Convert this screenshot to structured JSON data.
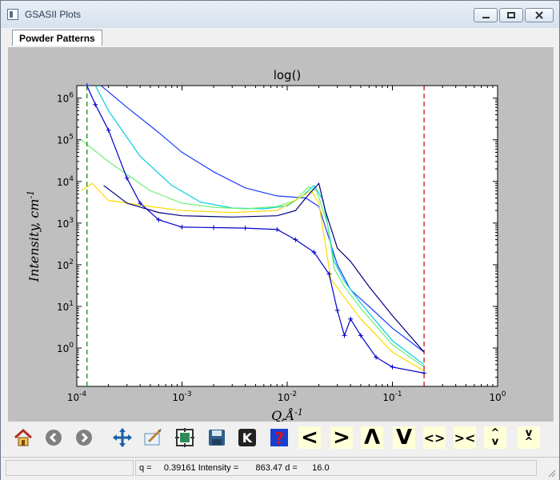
{
  "window": {
    "title": "GSASII Plots"
  },
  "tabs": [
    {
      "label": "Powder Patterns",
      "active": true
    }
  ],
  "toolbar": {
    "buttons": [
      {
        "name": "home",
        "glyph": ""
      },
      {
        "name": "back",
        "glyph": ""
      },
      {
        "name": "forward",
        "glyph": ""
      },
      {
        "name": "pan",
        "glyph": ""
      },
      {
        "name": "configure",
        "glyph": ""
      },
      {
        "name": "subplots",
        "glyph": ""
      },
      {
        "name": "save",
        "glyph": ""
      },
      {
        "name": "key",
        "glyph": "K"
      },
      {
        "name": "help",
        "glyph": "?"
      },
      {
        "name": "shift-left",
        "glyph": "<"
      },
      {
        "name": "shift-right",
        "glyph": ">"
      },
      {
        "name": "shift-up",
        "glyph": "Λ"
      },
      {
        "name": "shift-down",
        "glyph": "V"
      },
      {
        "name": "expand-horizontal",
        "glyph": "<>"
      },
      {
        "name": "compress-horizontal",
        "glyph": "><"
      },
      {
        "name": "expand-vertical",
        "glyph": "^v"
      },
      {
        "name": "compress-vertical",
        "glyph": "v^"
      }
    ]
  },
  "status": {
    "text": "q =     0.39161 Intensity =       863.47 d =      16.0"
  },
  "colors": {
    "plot_bg": "#bfbfbf",
    "green_line": "#008000",
    "red_line": "#c00000"
  },
  "chart_data": {
    "type": "line",
    "title": "log()",
    "xlabel": "Q,Å^-1",
    "ylabel": "Intensity, cm^-1",
    "xscale": "log",
    "yscale": "log",
    "xlim": [
      0.0001,
      1
    ],
    "ylim": [
      0.12,
      2000000
    ],
    "xticks": [
      {
        "value": 0.0001,
        "label": "10^-4"
      },
      {
        "value": 0.001,
        "label": "10^-3"
      },
      {
        "value": 0.01,
        "label": "10^-2"
      },
      {
        "value": 0.1,
        "label": "10^-1"
      },
      {
        "value": 1,
        "label": "10^0"
      }
    ],
    "yticks": [
      {
        "value": 1,
        "label": "10^0"
      },
      {
        "value": 10,
        "label": "10^1"
      },
      {
        "value": 100,
        "label": "10^2"
      },
      {
        "value": 1000,
        "label": "10^3"
      },
      {
        "value": 10000,
        "label": "10^4"
      },
      {
        "value": 100000,
        "label": "10^5"
      },
      {
        "value": 1000000,
        "label": "10^6"
      }
    ],
    "vlines": [
      {
        "x": 0.000125,
        "color": "#008000"
      },
      {
        "x": 0.2,
        "color": "#c00000"
      }
    ],
    "series": [
      {
        "color": "#1a3cff",
        "points": [
          [
            0.00017,
            2000000
          ],
          [
            0.0003,
            600000
          ],
          [
            0.0006,
            150000
          ],
          [
            0.001,
            50000
          ],
          [
            0.002,
            17000
          ],
          [
            0.004,
            7000
          ],
          [
            0.008,
            4500
          ],
          [
            0.015,
            4000
          ],
          [
            0.02,
            2500
          ],
          [
            0.03,
            100
          ],
          [
            0.04,
            25
          ],
          [
            0.06,
            10
          ],
          [
            0.1,
            3
          ],
          [
            0.2,
            0.8
          ]
        ]
      },
      {
        "color": "#00cfe0",
        "points": [
          [
            0.00015,
            2000000
          ],
          [
            0.0002,
            500000
          ],
          [
            0.0004,
            40000
          ],
          [
            0.0008,
            8000
          ],
          [
            0.0015,
            3200
          ],
          [
            0.003,
            2300
          ],
          [
            0.006,
            2200
          ],
          [
            0.01,
            2600
          ],
          [
            0.014,
            4500
          ],
          [
            0.018,
            8000
          ],
          [
            0.022,
            3500
          ],
          [
            0.028,
            120
          ],
          [
            0.035,
            40
          ],
          [
            0.05,
            12
          ],
          [
            0.1,
            1.5
          ],
          [
            0.2,
            0.4
          ]
        ]
      },
      {
        "color": "#70f070",
        "points": [
          [
            0.00011,
            100000
          ],
          [
            0.0002,
            30000
          ],
          [
            0.0005,
            6000
          ],
          [
            0.001,
            3000
          ],
          [
            0.002,
            2400
          ],
          [
            0.004,
            2200
          ],
          [
            0.008,
            2500
          ],
          [
            0.012,
            3500
          ],
          [
            0.016,
            7500
          ],
          [
            0.019,
            6000
          ],
          [
            0.024,
            1000
          ],
          [
            0.028,
            80
          ],
          [
            0.035,
            30
          ],
          [
            0.05,
            9
          ],
          [
            0.1,
            1.2
          ],
          [
            0.2,
            0.35
          ]
        ]
      },
      {
        "color": "#ffd800",
        "points": [
          [
            0.00011,
            6000
          ],
          [
            0.00014,
            9000
          ],
          [
            0.0002,
            3500
          ],
          [
            0.0005,
            2500
          ],
          [
            0.001,
            2000
          ],
          [
            0.003,
            1800
          ],
          [
            0.008,
            2000
          ],
          [
            0.013,
            4000
          ],
          [
            0.017,
            6000
          ],
          [
            0.02,
            3000
          ],
          [
            0.026,
            45
          ],
          [
            0.033,
            20
          ],
          [
            0.05,
            5
          ],
          [
            0.1,
            0.8
          ],
          [
            0.2,
            0.28
          ]
        ]
      },
      {
        "color": "#000080",
        "points": [
          [
            0.00018,
            8000
          ],
          [
            0.0003,
            3000
          ],
          [
            0.0006,
            1800
          ],
          [
            0.001,
            1500
          ],
          [
            0.003,
            1400
          ],
          [
            0.008,
            1500
          ],
          [
            0.012,
            2000
          ],
          [
            0.015,
            4000
          ],
          [
            0.02,
            9000
          ],
          [
            0.023,
            2000
          ],
          [
            0.03,
            250
          ],
          [
            0.04,
            120
          ],
          [
            0.06,
            30
          ],
          [
            0.1,
            6
          ],
          [
            0.2,
            0.8
          ]
        ]
      },
      {
        "color": "#0000cc",
        "markers": true,
        "points": [
          [
            0.000125,
            2000000
          ],
          [
            0.00015,
            700000
          ],
          [
            0.0002,
            170000
          ],
          [
            0.0003,
            12000
          ],
          [
            0.0004,
            3000
          ],
          [
            0.0006,
            1200
          ],
          [
            0.001,
            800
          ],
          [
            0.002,
            780
          ],
          [
            0.004,
            760
          ],
          [
            0.008,
            700
          ],
          [
            0.012,
            400
          ],
          [
            0.018,
            200
          ],
          [
            0.025,
            60
          ],
          [
            0.03,
            8
          ],
          [
            0.035,
            2
          ],
          [
            0.04,
            5
          ],
          [
            0.05,
            2
          ],
          [
            0.07,
            0.6
          ],
          [
            0.1,
            0.35
          ],
          [
            0.2,
            0.25
          ]
        ]
      }
    ]
  }
}
